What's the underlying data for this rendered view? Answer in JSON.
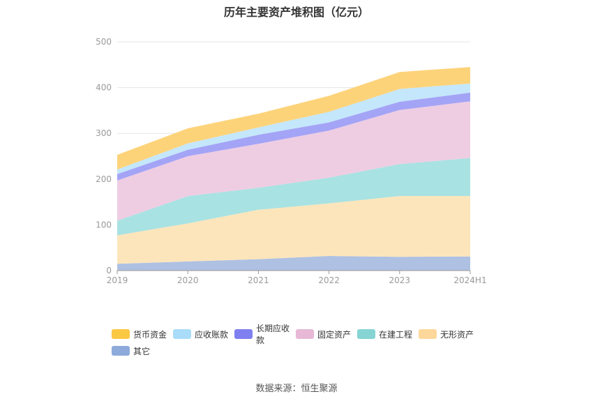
{
  "title": "历年主要资产堆积图（亿元）",
  "source": "数据来源：恒生聚源",
  "chart_data": {
    "type": "area",
    "stacked": true,
    "categories": [
      "2019",
      "2020",
      "2021",
      "2022",
      "2023",
      "2024H1"
    ],
    "ylim": [
      0,
      500
    ],
    "yticks": [
      0,
      100,
      200,
      300,
      400,
      500
    ],
    "grid": true,
    "legend_position": "bottom",
    "series": [
      {
        "name": "其它",
        "color": "#aec1e3",
        "legend_color": "#8eaadb",
        "values": [
          15,
          20,
          25,
          32,
          30,
          31
        ]
      },
      {
        "name": "无形资产",
        "color": "#fde5bb",
        "legend_color": "#fdd89a",
        "values": [
          62,
          83,
          108,
          115,
          133,
          132
        ]
      },
      {
        "name": "在建工程",
        "color": "#a9e2e2",
        "legend_color": "#86d4d4",
        "values": [
          32,
          60,
          48,
          56,
          70,
          83
        ]
      },
      {
        "name": "固定资产",
        "color": "#eecde3",
        "legend_color": "#e7b9d6",
        "values": [
          88,
          87,
          96,
          103,
          118,
          124
        ]
      },
      {
        "name": "长期应收款",
        "color": "#a4a4f6",
        "legend_color": "#7f7fef",
        "values": [
          14,
          14,
          20,
          18,
          18,
          19
        ]
      },
      {
        "name": "应收账款",
        "color": "#c4e7fb",
        "legend_color": "#a9dcf9",
        "values": [
          10,
          14,
          16,
          23,
          28,
          20
        ]
      },
      {
        "name": "货币资金",
        "color": "#fdd37a",
        "legend_color": "#fbc844",
        "values": [
          32,
          33,
          30,
          35,
          37,
          36
        ]
      }
    ]
  }
}
